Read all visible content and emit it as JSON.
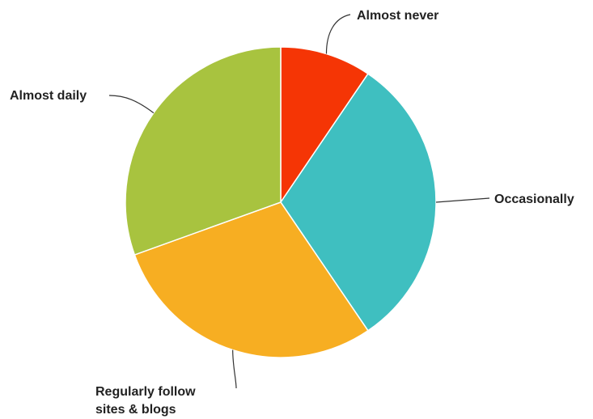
{
  "chart_data": {
    "type": "pie",
    "categories": [
      "Almost never",
      "Occasionally",
      "Regularly follow sites & blogs",
      "Almost daily"
    ],
    "values": [
      9.5,
      31,
      29,
      30.5
    ],
    "colors": [
      "#f53505",
      "#3fbfc0",
      "#f7ae22",
      "#a8c33f"
    ],
    "start_angle_deg": 0,
    "direction": "clockwise",
    "slices": [
      {
        "label_lines": [
          "Almost never"
        ]
      },
      {
        "label_lines": [
          "Occasionally"
        ]
      },
      {
        "label_lines": [
          "Regularly follow",
          "sites & blogs"
        ]
      },
      {
        "label_lines": [
          "Almost daily"
        ]
      }
    ]
  }
}
